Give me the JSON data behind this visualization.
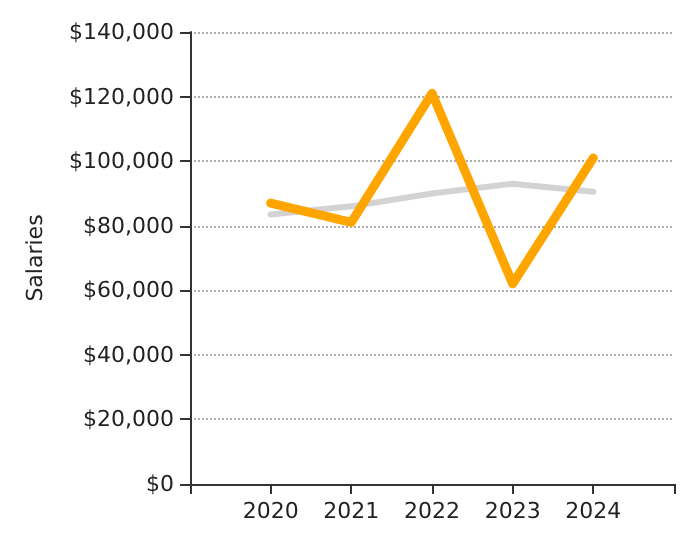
{
  "chart_data": {
    "type": "line",
    "ylabel": "Salaries",
    "x": [
      2020,
      2021,
      2022,
      2023,
      2024
    ],
    "xlim": [
      2019,
      2025
    ],
    "xticks": [
      {
        "value": 2019,
        "label": null
      },
      2020,
      2021,
      2022,
      2023,
      2024,
      {
        "value": 2025,
        "label": null
      }
    ],
    "ylim": [
      0,
      140000
    ],
    "yticks": [
      {
        "value": 0,
        "label": "$0"
      },
      {
        "value": 20000,
        "label": "$20,000"
      },
      {
        "value": 40000,
        "label": "$40,000"
      },
      {
        "value": 60000,
        "label": "$60,000"
      },
      {
        "value": 80000,
        "label": "$80,000"
      },
      {
        "value": 100000,
        "label": "$100,000"
      },
      {
        "value": 120000,
        "label": "$120,000"
      },
      {
        "value": 140000,
        "label": "$140,000"
      }
    ],
    "series": [
      {
        "color": "#d3d3d3",
        "values": [
          83500,
          86000,
          90000,
          93000,
          90500
        ]
      },
      {
        "color": "#ffa500",
        "values": [
          87000,
          81000,
          121000,
          62000,
          101000
        ]
      }
    ],
    "grid": "y",
    "marker": "none",
    "line_style": "solid"
  }
}
